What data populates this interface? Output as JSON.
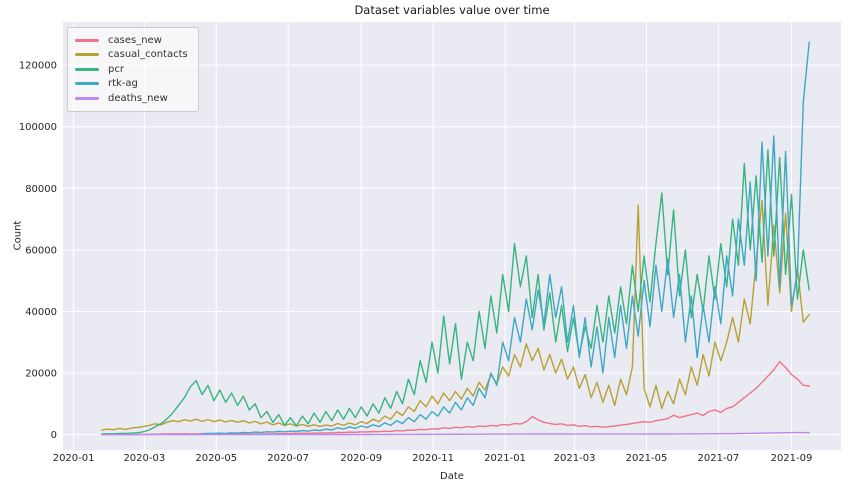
{
  "figure": {
    "title": "Dataset variables value over time",
    "xlabel": "Date",
    "ylabel": "Count",
    "plot_bg_color": "#eaeaf2",
    "grid_color": "#ffffff",
    "text_color": "#262626"
  },
  "chart_data": {
    "type": "line",
    "title": "Dataset variables value over time",
    "xlabel": "Date",
    "ylabel": "Count",
    "grid": true,
    "legend_position": "upper left",
    "xlim_days": [
      -9,
      651
    ],
    "ylim": [
      -5000,
      134000
    ],
    "x_ticks": [
      {
        "label": "2020-01",
        "day": 0
      },
      {
        "label": "2020-03",
        "day": 60
      },
      {
        "label": "2020-05",
        "day": 121
      },
      {
        "label": "2020-07",
        "day": 182
      },
      {
        "label": "2020-09",
        "day": 244
      },
      {
        "label": "2020-11",
        "day": 305
      },
      {
        "label": "2021-01",
        "day": 366
      },
      {
        "label": "2021-03",
        "day": 425
      },
      {
        "label": "2021-05",
        "day": 486
      },
      {
        "label": "2021-07",
        "day": 547
      },
      {
        "label": "2021-09",
        "day": 609
      }
    ],
    "y_ticks": [
      {
        "label": "0",
        "value": 0
      },
      {
        "label": "20000",
        "value": 20000
      },
      {
        "label": "40000",
        "value": 40000
      },
      {
        "label": "60000",
        "value": 60000
      },
      {
        "label": "80000",
        "value": 80000
      },
      {
        "label": "100000",
        "value": 100000
      },
      {
        "label": "120000",
        "value": 120000
      }
    ],
    "series_start_day": 24,
    "series_step_days": 5,
    "series_start_date": "2020-01-25",
    "series": [
      {
        "name": "cases_new",
        "color": "#ee7488",
        "values": [
          0,
          0,
          0,
          0,
          0,
          0,
          0,
          50,
          80,
          120,
          150,
          200,
          250,
          220,
          280,
          240,
          260,
          230,
          250,
          210,
          240,
          200,
          230,
          190,
          220,
          180,
          210,
          230,
          260,
          240,
          280,
          300,
          350,
          400,
          450,
          420,
          500,
          480,
          600,
          550,
          700,
          650,
          800,
          750,
          900,
          850,
          1000,
          950,
          1100,
          1050,
          1300,
          1200,
          1500,
          1400,
          1700,
          1600,
          1900,
          1800,
          2200,
          2000,
          2400,
          2200,
          2600,
          2400,
          2800,
          2600,
          3000,
          2800,
          3300,
          3100,
          3600,
          3400,
          4200,
          5800,
          4800,
          4000,
          3600,
          3300,
          3500,
          3000,
          3200,
          2700,
          2900,
          2500,
          2700,
          2400,
          2600,
          2800,
          3100,
          3300,
          3600,
          3900,
          4200,
          4000,
          4500,
          4800,
          5200,
          6300,
          5500,
          6000,
          6500,
          7000,
          6200,
          7500,
          8000,
          7200,
          8500,
          9000,
          10500,
          12000,
          13500,
          15000,
          17000,
          19000,
          21000,
          23700,
          21800,
          19500,
          18000,
          16000,
          15800
        ]
      },
      {
        "name": "casual_contacts",
        "color": "#b8a134",
        "values": [
          1500,
          1800,
          1600,
          2000,
          1700,
          2100,
          2300,
          2600,
          3000,
          3500,
          3200,
          4000,
          4500,
          4200,
          4800,
          4400,
          5000,
          4300,
          4900,
          4200,
          4700,
          4100,
          4600,
          4000,
          4500,
          3800,
          4300,
          3500,
          4100,
          3200,
          3800,
          3000,
          3500,
          2800,
          3300,
          2700,
          3200,
          2600,
          3100,
          2800,
          3600,
          3000,
          3800,
          3200,
          4200,
          3600,
          5000,
          4200,
          6000,
          5000,
          7500,
          6200,
          9000,
          7500,
          11000,
          9000,
          12500,
          10000,
          13500,
          11000,
          14000,
          11500,
          15000,
          12500,
          17000,
          14500,
          19500,
          16500,
          22000,
          19000,
          26000,
          22000,
          29500,
          24000,
          28000,
          21000,
          26000,
          20000,
          24500,
          18000,
          22000,
          15000,
          19500,
          12000,
          17000,
          10500,
          16000,
          9500,
          18000,
          13000,
          22000,
          74500,
          15000,
          9000,
          16000,
          8500,
          14000,
          10000,
          18000,
          13000,
          22000,
          16000,
          26000,
          19000,
          30000,
          24000,
          30000,
          38000,
          30000,
          44000,
          36000,
          56000,
          76000,
          42000,
          68000,
          46000,
          72000,
          40000,
          54000,
          36500,
          39000
        ]
      },
      {
        "name": "pcr",
        "color": "#38b57f",
        "values": [
          200,
          300,
          250,
          400,
          350,
          500,
          600,
          900,
          1500,
          2500,
          3500,
          5000,
          7000,
          9500,
          12000,
          15500,
          17500,
          13000,
          16000,
          11000,
          14500,
          10500,
          13500,
          9500,
          12500,
          8000,
          10000,
          5500,
          7500,
          4000,
          6500,
          3000,
          5500,
          2800,
          6000,
          3500,
          7000,
          4000,
          7500,
          4500,
          8000,
          5000,
          8500,
          5500,
          9000,
          6000,
          10000,
          7000,
          12000,
          8500,
          14000,
          10000,
          18000,
          13000,
          24000,
          17000,
          30000,
          20000,
          38500,
          23000,
          36000,
          18000,
          30000,
          24000,
          40000,
          28000,
          45000,
          33000,
          52000,
          40000,
          62000,
          48000,
          58000,
          38000,
          52000,
          34000,
          46000,
          30000,
          42000,
          27000,
          38000,
          26000,
          35000,
          28000,
          42000,
          30000,
          45000,
          33000,
          48000,
          36000,
          55000,
          40000,
          58000,
          43000,
          62000,
          78500,
          52000,
          73000,
          45000,
          60000,
          38000,
          52000,
          40000,
          58000,
          44000,
          62000,
          48000,
          70000,
          55000,
          88000,
          60000,
          84000,
          56000,
          92500,
          58000,
          90000,
          52000,
          78000,
          44000,
          60000,
          47000
        ]
      },
      {
        "name": "rtk-ag",
        "color": "#3fa8c4",
        "values": [
          null,
          null,
          null,
          null,
          null,
          null,
          null,
          null,
          null,
          null,
          null,
          null,
          null,
          null,
          null,
          null,
          null,
          300,
          400,
          350,
          500,
          400,
          600,
          500,
          700,
          600,
          800,
          700,
          900,
          800,
          1000,
          900,
          1100,
          1000,
          1300,
          1100,
          1500,
          1300,
          1800,
          1500,
          2200,
          1800,
          2500,
          2000,
          2800,
          2300,
          3200,
          2600,
          3800,
          3000,
          4500,
          3600,
          5500,
          4200,
          6500,
          5000,
          7500,
          6000,
          9000,
          7000,
          10500,
          8000,
          12000,
          9500,
          15000,
          12000,
          20000,
          16000,
          30000,
          24000,
          38000,
          30000,
          44000,
          34000,
          47000,
          36000,
          52000,
          38000,
          48000,
          30000,
          42000,
          25000,
          38000,
          22000,
          35000,
          20000,
          38000,
          25000,
          42000,
          28000,
          45000,
          32000,
          50000,
          35000,
          55000,
          40000,
          57000,
          38000,
          52000,
          30000,
          45000,
          25000,
          42000,
          30000,
          48000,
          36000,
          58000,
          45000,
          70000,
          55000,
          82000,
          50000,
          95000,
          58000,
          97000,
          48000,
          92000,
          42000,
          52000,
          108000,
          127500
        ]
      },
      {
        "name": "deaths_new",
        "color": "#bd89ee",
        "values": [
          0,
          0,
          0,
          0,
          0,
          0,
          0,
          0,
          0,
          0,
          5,
          8,
          10,
          12,
          15,
          14,
          18,
          16,
          20,
          18,
          22,
          20,
          25,
          22,
          28,
          24,
          30,
          26,
          32,
          28,
          35,
          30,
          38,
          32,
          40,
          35,
          42,
          38,
          45,
          40,
          48,
          42,
          50,
          45,
          55,
          48,
          60,
          52,
          65,
          58,
          70,
          65,
          80,
          72,
          90,
          80,
          100,
          90,
          110,
          100,
          120,
          110,
          130,
          120,
          140,
          130,
          150,
          140,
          160,
          150,
          180,
          170,
          200,
          190,
          210,
          200,
          220,
          210,
          200,
          190,
          180,
          170,
          160,
          150,
          160,
          150,
          170,
          160,
          180,
          170,
          190,
          180,
          200,
          190,
          210,
          200,
          220,
          210,
          230,
          220,
          250,
          240,
          270,
          260,
          290,
          280,
          310,
          300,
          350,
          380,
          420,
          450,
          500,
          530,
          560,
          600,
          620,
          640,
          650,
          640,
          620
        ]
      }
    ]
  }
}
